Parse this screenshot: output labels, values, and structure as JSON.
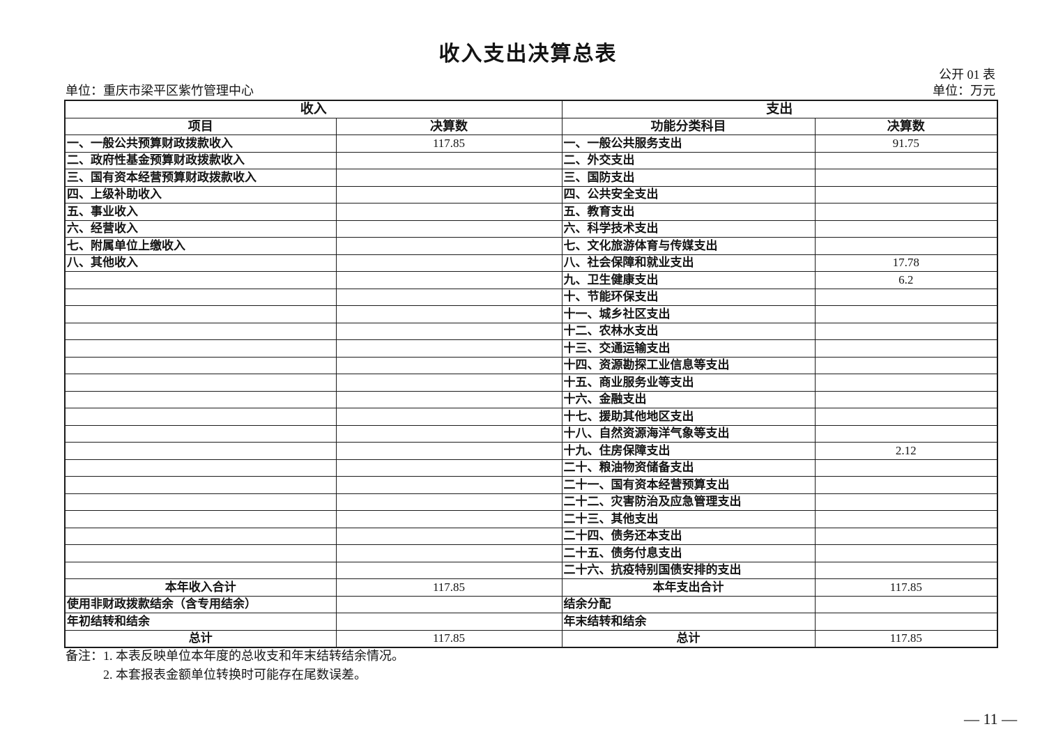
{
  "page": {
    "title": "收入支出决算总表",
    "table_code": "公开 01 表",
    "unit_name": "单位：重庆市梁平区紫竹管理中心",
    "unit_measure": "单位：万元",
    "page_number": "— 11 —"
  },
  "table": {
    "income": {
      "section_title": "收入",
      "col_item": "项目",
      "col_value": "决算数",
      "rows": [
        {
          "label": "一、一般公共预算财政拨款收入",
          "value": "117.85"
        },
        {
          "label": "二、政府性基金预算财政拨款收入",
          "value": ""
        },
        {
          "label": "三、国有资本经营预算财政拨款收入",
          "value": ""
        },
        {
          "label": "四、上级补助收入",
          "value": ""
        },
        {
          "label": "五、事业收入",
          "value": ""
        },
        {
          "label": "六、经营收入",
          "value": ""
        },
        {
          "label": "七、附属单位上缴收入",
          "value": ""
        },
        {
          "label": "八、其他收入",
          "value": ""
        }
      ]
    },
    "expenditure": {
      "section_title": "支出",
      "col_item": "功能分类科目",
      "col_value": "决算数",
      "rows": [
        {
          "label": "一、一般公共服务支出",
          "value": "91.75"
        },
        {
          "label": "二、外交支出",
          "value": ""
        },
        {
          "label": "三、国防支出",
          "value": ""
        },
        {
          "label": "四、公共安全支出",
          "value": ""
        },
        {
          "label": "五、教育支出",
          "value": ""
        },
        {
          "label": "六、科学技术支出",
          "value": ""
        },
        {
          "label": "七、文化旅游体育与传媒支出",
          "value": ""
        },
        {
          "label": "八、社会保障和就业支出",
          "value": "17.78"
        },
        {
          "label": "九、卫生健康支出",
          "value": "6.2"
        },
        {
          "label": "十、节能环保支出",
          "value": ""
        },
        {
          "label": "十一、城乡社区支出",
          "value": ""
        },
        {
          "label": "十二、农林水支出",
          "value": ""
        },
        {
          "label": "十三、交通运输支出",
          "value": ""
        },
        {
          "label": "十四、资源勘探工业信息等支出",
          "value": ""
        },
        {
          "label": "十五、商业服务业等支出",
          "value": ""
        },
        {
          "label": "十六、金融支出",
          "value": ""
        },
        {
          "label": "十七、援助其他地区支出",
          "value": ""
        },
        {
          "label": "十八、自然资源海洋气象等支出",
          "value": ""
        },
        {
          "label": "十九、住房保障支出",
          "value": "2.12"
        },
        {
          "label": "二十、粮油物资储备支出",
          "value": ""
        },
        {
          "label": "二十一、国有资本经营预算支出",
          "value": ""
        },
        {
          "label": "二十二、灾害防治及应急管理支出",
          "value": ""
        },
        {
          "label": "二十三、其他支出",
          "value": ""
        },
        {
          "label": "二十四、债务还本支出",
          "value": ""
        },
        {
          "label": "二十五、债务付息支出",
          "value": ""
        },
        {
          "label": "二十六、抗疫特别国债安排的支出",
          "value": ""
        }
      ]
    },
    "summary_rows": [
      {
        "income_label": "本年收入合计",
        "income_value": "117.85",
        "income_align": "center",
        "expenditure_label": "本年支出合计",
        "expenditure_value": "117.85",
        "expenditure_align": "center"
      },
      {
        "income_label": "使用非财政拨款结余（含专用结余）",
        "income_value": "",
        "income_align": "left",
        "expenditure_label": "结余分配",
        "expenditure_value": "",
        "expenditure_align": "left"
      },
      {
        "income_label": "年初结转和结余",
        "income_value": "",
        "income_align": "left",
        "expenditure_label": "年末结转和结余",
        "expenditure_value": "",
        "expenditure_align": "left"
      },
      {
        "income_label": "总计",
        "income_value": "117.85",
        "income_align": "center",
        "expenditure_label": "总计",
        "expenditure_value": "117.85",
        "expenditure_align": "center"
      }
    ]
  },
  "notes": {
    "label": "备注：",
    "lines": [
      "1. 本表反映单位本年度的总收支和年末结转结余情况。",
      "2. 本套报表金额单位转换时可能存在尾数误差。"
    ]
  }
}
